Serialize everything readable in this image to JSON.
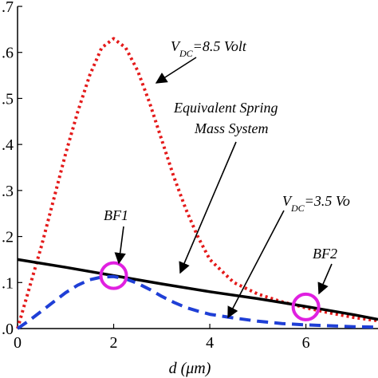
{
  "chart_data": {
    "type": "line",
    "xlabel": "d (μm)",
    "ylabel": "",
    "xlim": [
      0,
      7.5
    ],
    "ylim": [
      0,
      0.7
    ],
    "x_ticks": [
      0,
      2,
      4,
      6
    ],
    "x_tick_labels": [
      "0",
      "2",
      "4",
      "6"
    ],
    "y_ticks": [
      0,
      0.1,
      0.2,
      0.3,
      0.4,
      0.5,
      0.6,
      0.7
    ],
    "y_tick_labels": [
      ".0",
      ".1",
      ".2",
      ".3",
      ".4",
      ".5",
      ".6",
      ".7"
    ],
    "grid": false,
    "series": [
      {
        "key": "vdc85",
        "color": "#e41a1a",
        "style": "dotted",
        "x": [
          0,
          0.25,
          0.5,
          0.75,
          1.0,
          1.25,
          1.5,
          1.75,
          2.0,
          2.25,
          2.5,
          2.75,
          3.0,
          3.25,
          3.5,
          3.75,
          4.0,
          4.5,
          5.0,
          5.5,
          6.0,
          6.5,
          7.0,
          7.5
        ],
        "y": [
          0.0,
          0.09,
          0.18,
          0.28,
          0.38,
          0.47,
          0.55,
          0.61,
          0.63,
          0.61,
          0.56,
          0.49,
          0.41,
          0.33,
          0.26,
          0.2,
          0.15,
          0.1,
          0.075,
          0.058,
          0.045,
          0.034,
          0.024,
          0.017
        ]
      },
      {
        "key": "equivalent",
        "color": "#000000",
        "style": "solid",
        "x": [
          0,
          1,
          2,
          3,
          4,
          5,
          6,
          7,
          7.5
        ],
        "y": [
          0.15,
          0.133,
          0.115,
          0.097,
          0.08,
          0.065,
          0.048,
          0.03,
          0.02
        ]
      },
      {
        "key": "vdc35",
        "color": "#1f3fd6",
        "style": "dashed",
        "x": [
          0,
          0.25,
          0.5,
          0.75,
          1.0,
          1.25,
          1.5,
          1.75,
          2.0,
          2.25,
          2.5,
          2.75,
          3.0,
          3.25,
          3.5,
          3.75,
          4.0,
          4.5,
          5.0,
          5.5,
          6.0,
          6.5,
          7.0,
          7.5
        ],
        "y": [
          0.0,
          0.018,
          0.038,
          0.058,
          0.078,
          0.094,
          0.106,
          0.112,
          0.113,
          0.108,
          0.098,
          0.085,
          0.07,
          0.057,
          0.046,
          0.038,
          0.031,
          0.023,
          0.016,
          0.011,
          0.008,
          0.006,
          0.004,
          0.003
        ]
      }
    ],
    "markers": [
      {
        "key": "bf1",
        "x": 2.0,
        "y": 0.115,
        "color": "#e020e0"
      },
      {
        "key": "bf2",
        "x": 6.0,
        "y": 0.047,
        "color": "#e020e0"
      }
    ],
    "annotations": {
      "vdc85": {
        "main": "V",
        "sub": "DC",
        "rest": "=8.5 Volt"
      },
      "equivalent_line1": "Equivalent Spring",
      "equivalent_line2": "Mass System",
      "vdc35": {
        "main": "V",
        "sub": "DC",
        "rest": "=3.5 Vo"
      },
      "bf1": "BF1",
      "bf2": "BF2"
    }
  }
}
